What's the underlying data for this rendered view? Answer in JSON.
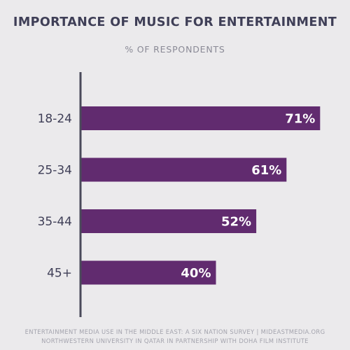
{
  "colors": {
    "bar": "#612b6f",
    "axis": "#4a4a5a",
    "label": "#3f3f57",
    "value": "#ffffff"
  },
  "chart_data": {
    "type": "bar",
    "orientation": "horizontal",
    "title": "IMPORTANCE OF MUSIC FOR ENTERTAINMENT",
    "subtitle": "% OF RESPONDENTS",
    "categories": [
      "18-24",
      "25-34",
      "35-44",
      "45+"
    ],
    "values": [
      71,
      61,
      52,
      40
    ],
    "value_labels": [
      "71%",
      "61%",
      "52%",
      "40%"
    ],
    "xlim": [
      0,
      100
    ],
    "grid": false,
    "legend": "none"
  },
  "footer": {
    "line1": "ENTERTAINMENT MEDIA USE IN THE MIDDLE EAST: A SIX NATION SURVEY | MIDEASTMEDIA.ORG",
    "line2": "NORTHWESTERN UNIVERSITY IN QATAR IN PARTNERSHIP WITH DOHA FILM INSTITUTE"
  }
}
